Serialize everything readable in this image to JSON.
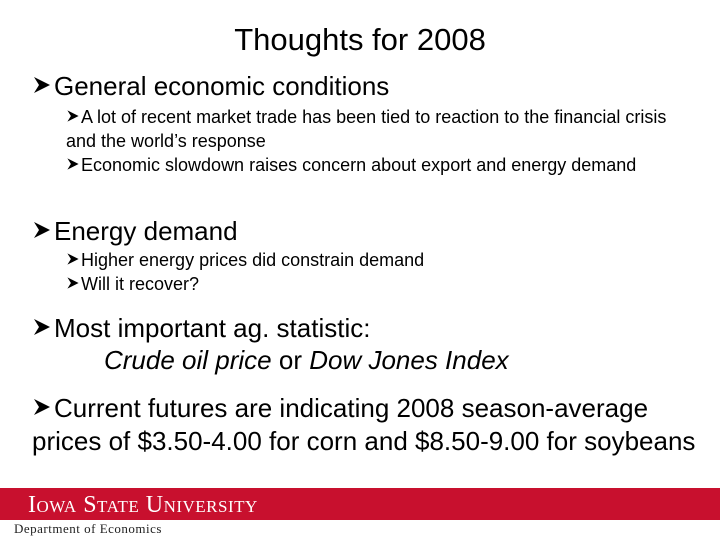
{
  "header": {
    "title": "Thoughts for 2008"
  },
  "bullets": [
    {
      "text": "General economic conditions",
      "subs": [
        "A lot of recent market trade has been tied to reaction to the financial crisis and the world’s response",
        "Economic slowdown raises concern about export and energy demand"
      ]
    },
    {
      "text": "Energy demand",
      "subs": [
        "Higher energy prices did constrain demand",
        "Will it recover?"
      ]
    },
    {
      "text": "Most important ag. statistic:",
      "line2": [
        "Crude oil price",
        " or ",
        "Dow Jones Index"
      ]
    },
    {
      "text": "Current futures are indicating 2008 season-average prices of $3.50-4.00 for corn and $8.50-9.00 for soybeans"
    }
  ],
  "footer": {
    "university": "Iowa State University",
    "department": "Department of Economics"
  }
}
